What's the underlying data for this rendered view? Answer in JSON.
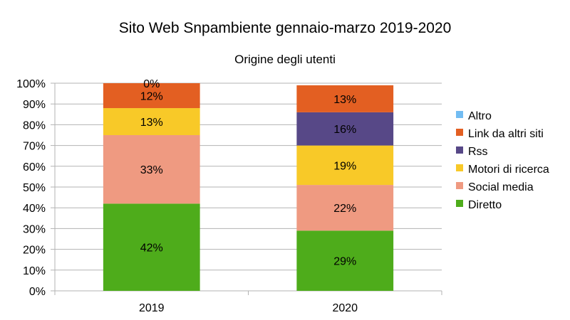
{
  "chart_data": {
    "type": "bar",
    "stacked": true,
    "normalized": true,
    "title": "Sito Web Snpambiente gennaio-marzo 2019-2020",
    "subtitle": "Origine degli utenti",
    "categories": [
      "2019",
      "2020"
    ],
    "y_ticks": [
      "0%",
      "10%",
      "20%",
      "30%",
      "40%",
      "50%",
      "60%",
      "70%",
      "80%",
      "90%",
      "100%"
    ],
    "ylim": [
      0,
      100
    ],
    "grid": true,
    "legend_position": "right",
    "series": [
      {
        "name": "Diretto",
        "color": "#4eac1b",
        "values": [
          42,
          29
        ],
        "labels": [
          "42%",
          "29%"
        ]
      },
      {
        "name": "Social media",
        "color": "#ef9a81",
        "values": [
          33,
          22
        ],
        "labels": [
          "33%",
          "22%"
        ]
      },
      {
        "name": "Motori di ricerca",
        "color": "#f8c928",
        "values": [
          13,
          19
        ],
        "labels": [
          "13%",
          "19%"
        ]
      },
      {
        "name": "Rss",
        "color": "#574887",
        "values": [
          0,
          16
        ],
        "labels": [
          "",
          "16%"
        ]
      },
      {
        "name": "Link da altri siti",
        "color": "#e35f22",
        "values": [
          12,
          13
        ],
        "labels": [
          "12%",
          "13%"
        ]
      },
      {
        "name": "Altro",
        "color": "#72bcf2",
        "values": [
          0,
          0
        ],
        "labels": [
          "0%",
          ""
        ]
      }
    ],
    "legend_order": [
      "Altro",
      "Link da altri siti",
      "Rss",
      "Motori di ricerca",
      "Social media",
      "Diretto"
    ]
  }
}
